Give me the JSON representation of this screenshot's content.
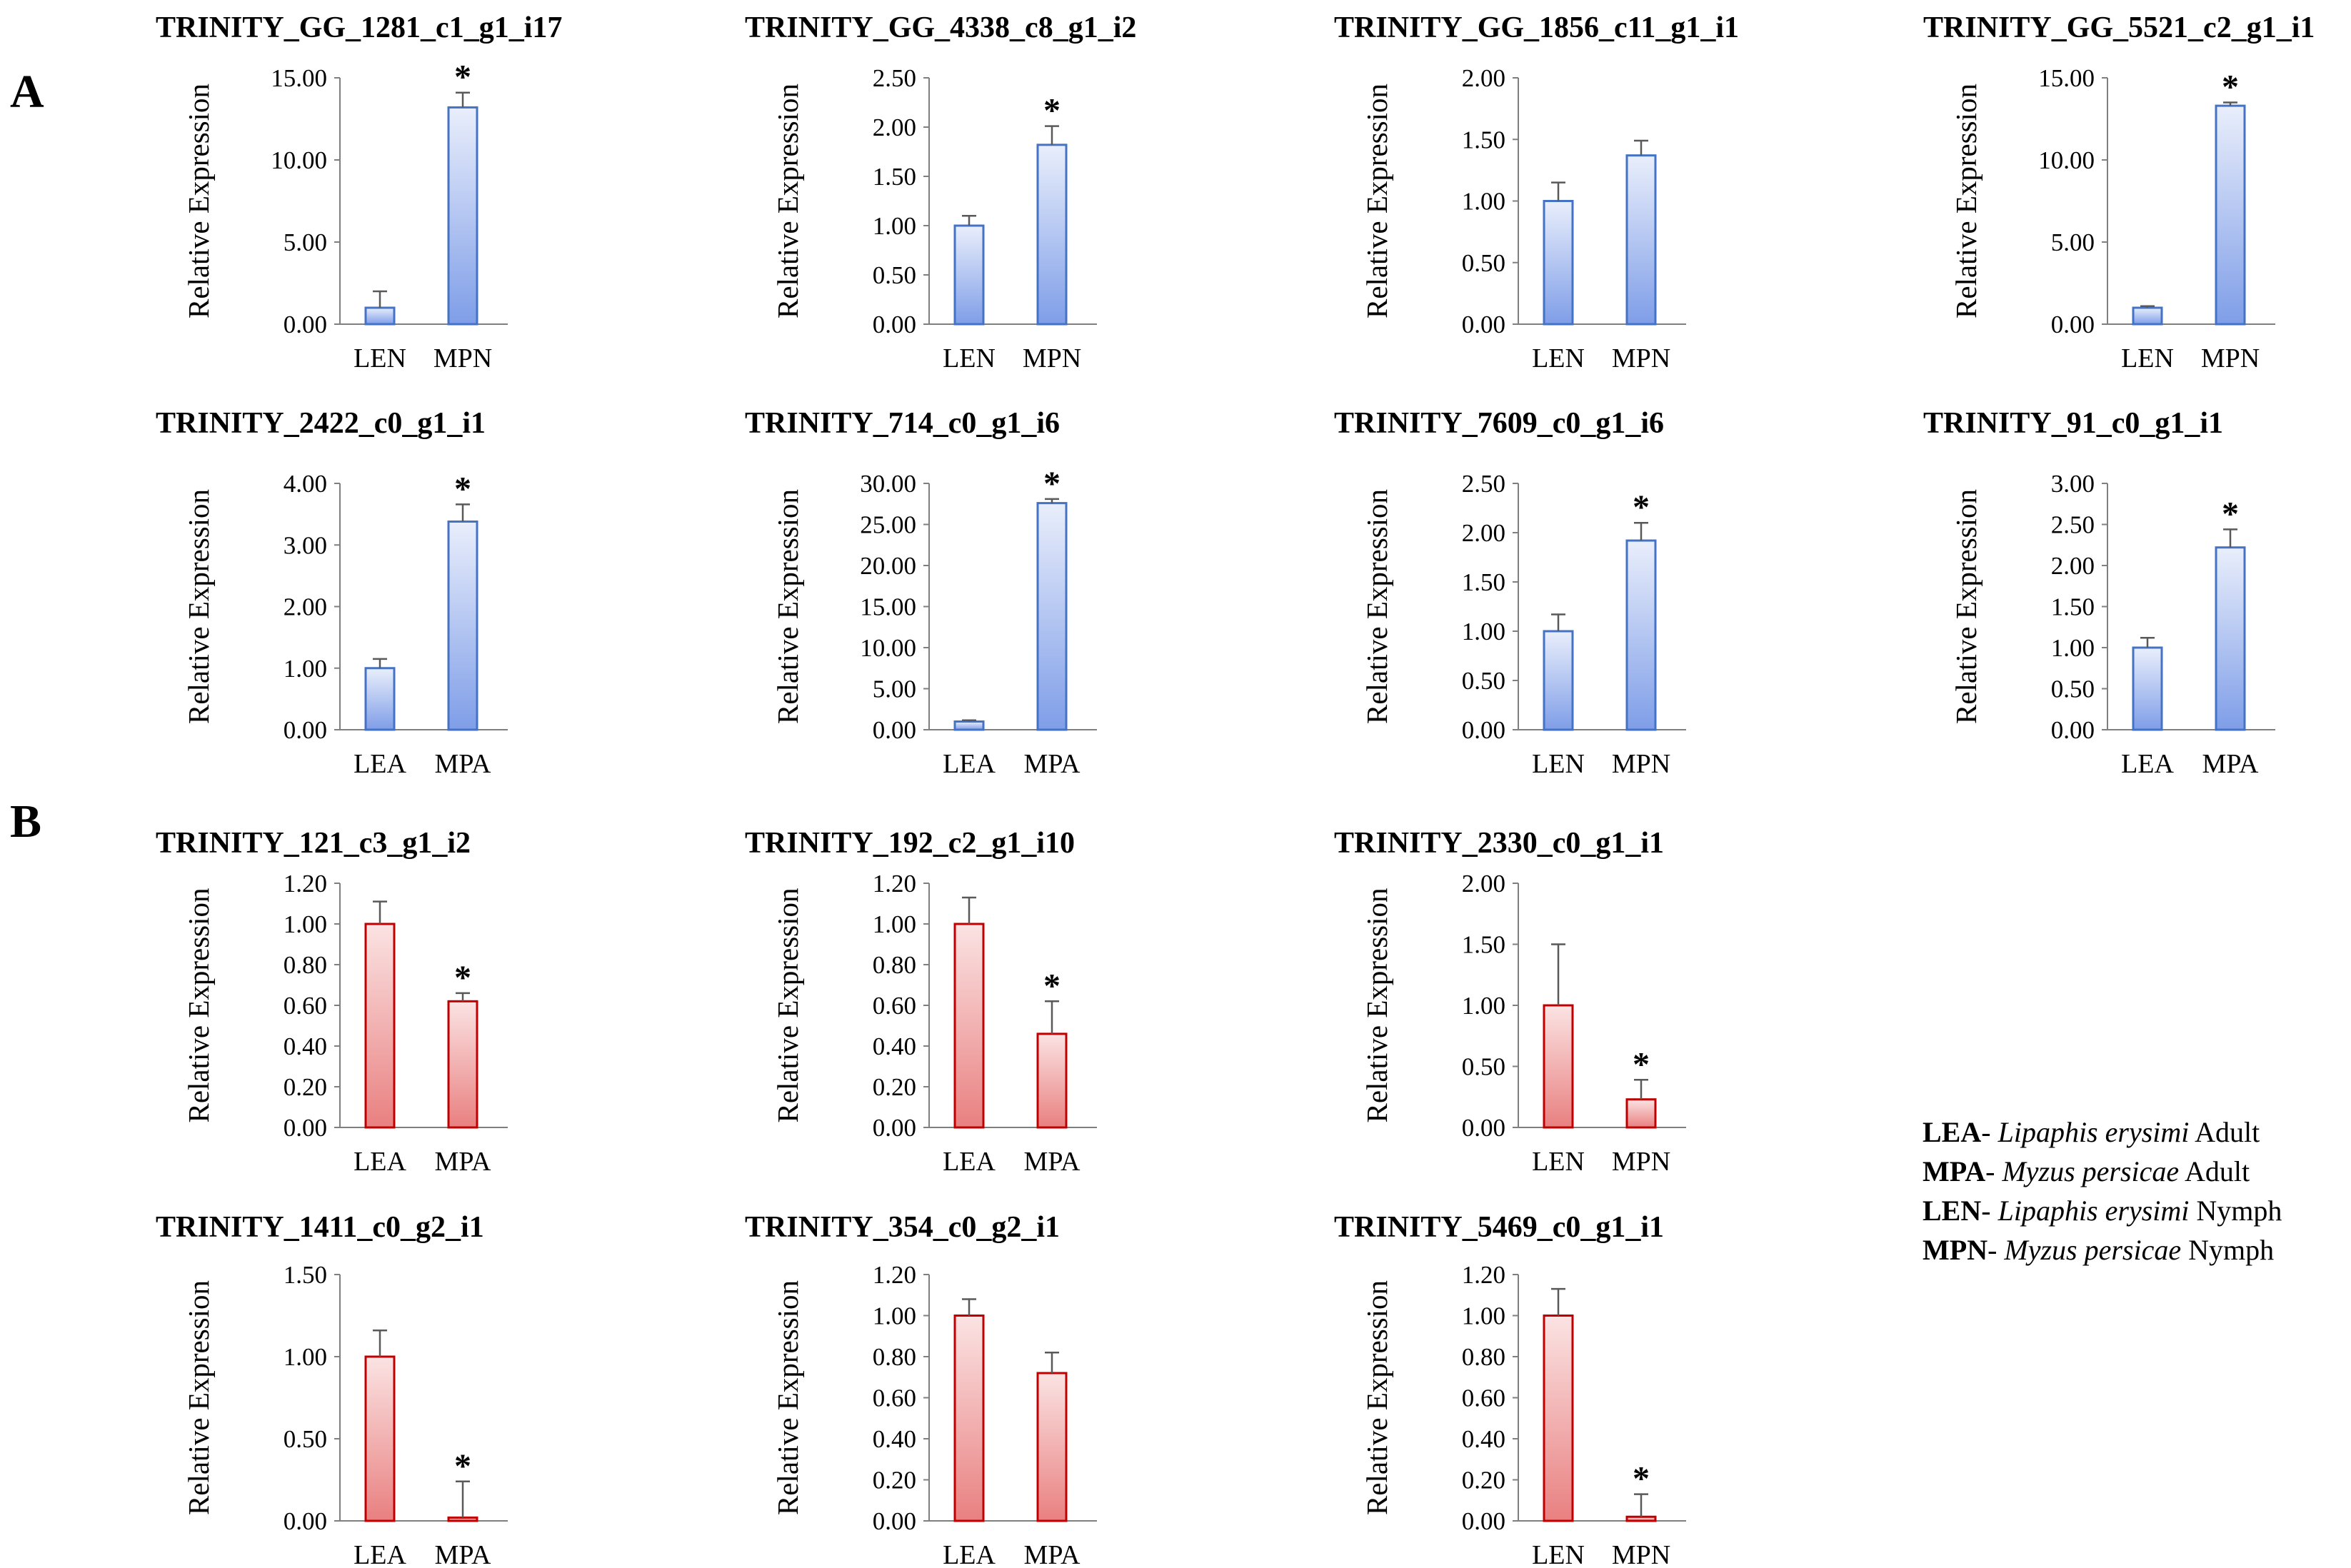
{
  "panels": [
    {
      "label": "A"
    },
    {
      "label": "B"
    }
  ],
  "chart_data": [
    {
      "type": "bar",
      "title": "TRINITY_GG_1281_c1_g1_i17",
      "ylabel": "Relative Expression",
      "categories": [
        "LEN",
        "MPN"
      ],
      "values": [
        1.0,
        13.2
      ],
      "errors": [
        1.0,
        0.9
      ],
      "significant": [
        false,
        true
      ],
      "ylim": [
        0,
        15
      ],
      "yticks": [
        "0.00",
        "5.00",
        "10.00",
        "15.00"
      ],
      "color": "blue"
    },
    {
      "type": "bar",
      "title": "TRINITY_GG_4338_c8_g1_i2",
      "ylabel": "Relative Expression",
      "categories": [
        "LEN",
        "MPN"
      ],
      "values": [
        1.0,
        1.82
      ],
      "errors": [
        0.1,
        0.19
      ],
      "significant": [
        false,
        true
      ],
      "ylim": [
        0,
        2.5
      ],
      "yticks": [
        "0.00",
        "0.50",
        "1.00",
        "1.50",
        "2.00",
        "2.50"
      ],
      "color": "blue"
    },
    {
      "type": "bar",
      "title": "TRINITY_GG_1856_c11_g1_i1",
      "ylabel": "Relative Expression",
      "categories": [
        "LEN",
        "MPN"
      ],
      "values": [
        1.0,
        1.37
      ],
      "errors": [
        0.15,
        0.12
      ],
      "significant": [
        false,
        false
      ],
      "ylim": [
        0,
        2.0
      ],
      "yticks": [
        "0.00",
        "0.50",
        "1.00",
        "1.50",
        "2.00"
      ],
      "color": "blue"
    },
    {
      "type": "bar",
      "title": "TRINITY_GG_5521_c2_g1_i1",
      "ylabel": "Relative Expression",
      "categories": [
        "LEN",
        "MPN"
      ],
      "values": [
        1.0,
        13.3
      ],
      "errors": [
        0.1,
        0.2
      ],
      "significant": [
        false,
        true
      ],
      "ylim": [
        0,
        15
      ],
      "yticks": [
        "0.00",
        "5.00",
        "10.00",
        "15.00"
      ],
      "color": "blue"
    },
    {
      "type": "bar",
      "title": "TRINITY_2422_c0_g1_i1",
      "ylabel": "Relative Expression",
      "categories": [
        "LEA",
        "MPA"
      ],
      "values": [
        1.0,
        3.38
      ],
      "errors": [
        0.15,
        0.28
      ],
      "significant": [
        false,
        true
      ],
      "ylim": [
        0,
        4.0
      ],
      "yticks": [
        "0.00",
        "1.00",
        "2.00",
        "3.00",
        "4.00"
      ],
      "color": "blue"
    },
    {
      "type": "bar",
      "title": "TRINITY_714_c0_g1_i6",
      "ylabel": "Relative Expression",
      "categories": [
        "LEA",
        "MPA"
      ],
      "values": [
        1.0,
        27.6
      ],
      "errors": [
        0.15,
        0.5
      ],
      "significant": [
        false,
        true
      ],
      "ylim": [
        0,
        30
      ],
      "yticks": [
        "0.00",
        "5.00",
        "10.00",
        "15.00",
        "20.00",
        "25.00",
        "30.00"
      ],
      "color": "blue"
    },
    {
      "type": "bar",
      "title": "TRINITY_7609_c0_g1_i6",
      "ylabel": "Relative Expression",
      "categories": [
        "LEN",
        "MPN"
      ],
      "values": [
        1.0,
        1.92
      ],
      "errors": [
        0.17,
        0.18
      ],
      "significant": [
        false,
        true
      ],
      "ylim": [
        0,
        2.5
      ],
      "yticks": [
        "0.00",
        "0.50",
        "1.00",
        "1.50",
        "2.00",
        "2.50"
      ],
      "color": "blue"
    },
    {
      "type": "bar",
      "title": "TRINITY_91_c0_g1_i1",
      "ylabel": "Relative Expression",
      "categories": [
        "LEA",
        "MPA"
      ],
      "values": [
        1.0,
        2.22
      ],
      "errors": [
        0.12,
        0.22
      ],
      "significant": [
        false,
        true
      ],
      "ylim": [
        0,
        3.0
      ],
      "yticks": [
        "0.00",
        "0.50",
        "1.00",
        "1.50",
        "2.00",
        "2.50",
        "3.00"
      ],
      "color": "blue"
    },
    {
      "type": "bar",
      "title": "TRINITY_121_c3_g1_i2",
      "ylabel": "Relative Expression",
      "categories": [
        "LEA",
        "MPA"
      ],
      "values": [
        1.0,
        0.62
      ],
      "errors": [
        0.11,
        0.04
      ],
      "significant": [
        false,
        true
      ],
      "ylim": [
        0,
        1.2
      ],
      "yticks": [
        "0.00",
        "0.20",
        "0.40",
        "0.60",
        "0.80",
        "1.00",
        "1.20"
      ],
      "color": "red"
    },
    {
      "type": "bar",
      "title": "TRINITY_192_c2_g1_i10",
      "ylabel": "Relative Expression",
      "categories": [
        "LEA",
        "MPA"
      ],
      "values": [
        1.0,
        0.46
      ],
      "errors": [
        0.13,
        0.16
      ],
      "significant": [
        false,
        true
      ],
      "ylim": [
        0,
        1.2
      ],
      "yticks": [
        "0.00",
        "0.20",
        "0.40",
        "0.60",
        "0.80",
        "1.00",
        "1.20"
      ],
      "color": "red"
    },
    {
      "type": "bar",
      "title": "TRINITY_2330_c0_g1_i1",
      "ylabel": "Relative Expression",
      "categories": [
        "LEN",
        "MPN"
      ],
      "values": [
        1.0,
        0.23
      ],
      "errors": [
        0.5,
        0.16
      ],
      "significant": [
        false,
        true
      ],
      "ylim": [
        0,
        2.0
      ],
      "yticks": [
        "0.00",
        "0.50",
        "1.00",
        "1.50",
        "2.00"
      ],
      "color": "red"
    },
    {
      "type": "bar",
      "title": "TRINITY_1411_c0_g2_i1",
      "ylabel": "Relative Expression",
      "categories": [
        "LEA",
        "MPA"
      ],
      "values": [
        1.0,
        0.02
      ],
      "errors": [
        0.16,
        0.22
      ],
      "significant": [
        false,
        true
      ],
      "ylim": [
        0,
        1.5
      ],
      "yticks": [
        "0.00",
        "0.50",
        "1.00",
        "1.50"
      ],
      "color": "red"
    },
    {
      "type": "bar",
      "title": "TRINITY_354_c0_g2_i1",
      "ylabel": "Relative Expression",
      "categories": [
        "LEA",
        "MPA"
      ],
      "values": [
        1.0,
        0.72
      ],
      "errors": [
        0.08,
        0.1
      ],
      "significant": [
        false,
        false
      ],
      "ylim": [
        0,
        1.2
      ],
      "yticks": [
        "0.00",
        "0.20",
        "0.40",
        "0.60",
        "0.80",
        "1.00",
        "1.20"
      ],
      "color": "red"
    },
    {
      "type": "bar",
      "title": "TRINITY_5469_c0_g1_i1",
      "ylabel": "Relative Expression",
      "categories": [
        "LEN",
        "MPN"
      ],
      "values": [
        1.0,
        0.02
      ],
      "errors": [
        0.13,
        0.11
      ],
      "significant": [
        false,
        true
      ],
      "ylim": [
        0,
        1.2
      ],
      "yticks": [
        "0.00",
        "0.20",
        "0.40",
        "0.60",
        "0.80",
        "1.00",
        "1.20"
      ],
      "color": "red"
    }
  ],
  "legend": [
    {
      "abbr": "LEA",
      "species": "Lipaphis erysimi",
      "stage": "Adult"
    },
    {
      "abbr": "MPA",
      "species": "Myzus persicae",
      "stage": "Adult"
    },
    {
      "abbr": "LEN",
      "species": "Lipaphis erysimi",
      "stage": "Nymph"
    },
    {
      "abbr": "MPN",
      "species": "Myzus persicae",
      "stage": "Nymph"
    }
  ],
  "legend_separator": "- ",
  "significance_marker": "*",
  "colors": {
    "blue_top": "#e9eefb",
    "blue_bottom": "#7f9ee8",
    "blue_edge": "#4472c4",
    "red_top": "#fbe3e3",
    "red_bottom": "#e98080",
    "red_edge": "#c00000",
    "axis": "#7f7f7f",
    "error": "#595959"
  }
}
